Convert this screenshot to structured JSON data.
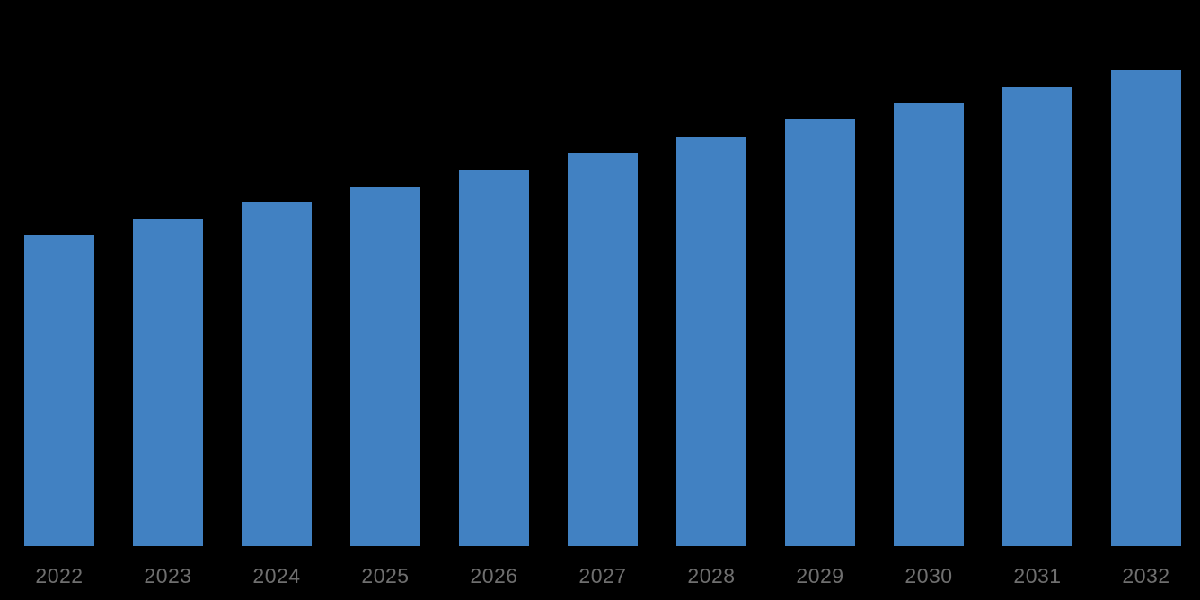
{
  "chart_data": {
    "type": "bar",
    "title": "",
    "xlabel": "",
    "ylabel": "",
    "categories": [
      "2022",
      "2023",
      "2024",
      "2025",
      "2026",
      "2027",
      "2028",
      "2029",
      "2030",
      "2031",
      "2032"
    ],
    "values": [
      65.3,
      68.7,
      72.3,
      75.5,
      79.1,
      82.6,
      86.0,
      89.6,
      93.0,
      96.4,
      100.0
    ],
    "value_units": "relative units (% of tallest 2032 bar); no value axis, gridlines or data labels are shown in the image",
    "ylim": [
      0,
      114.7
    ],
    "grid": false,
    "legend": false,
    "axes_visible": false,
    "bar_color": "#4181C2",
    "tick_label_color": "#6F6F6F",
    "background_color": "#000000"
  }
}
